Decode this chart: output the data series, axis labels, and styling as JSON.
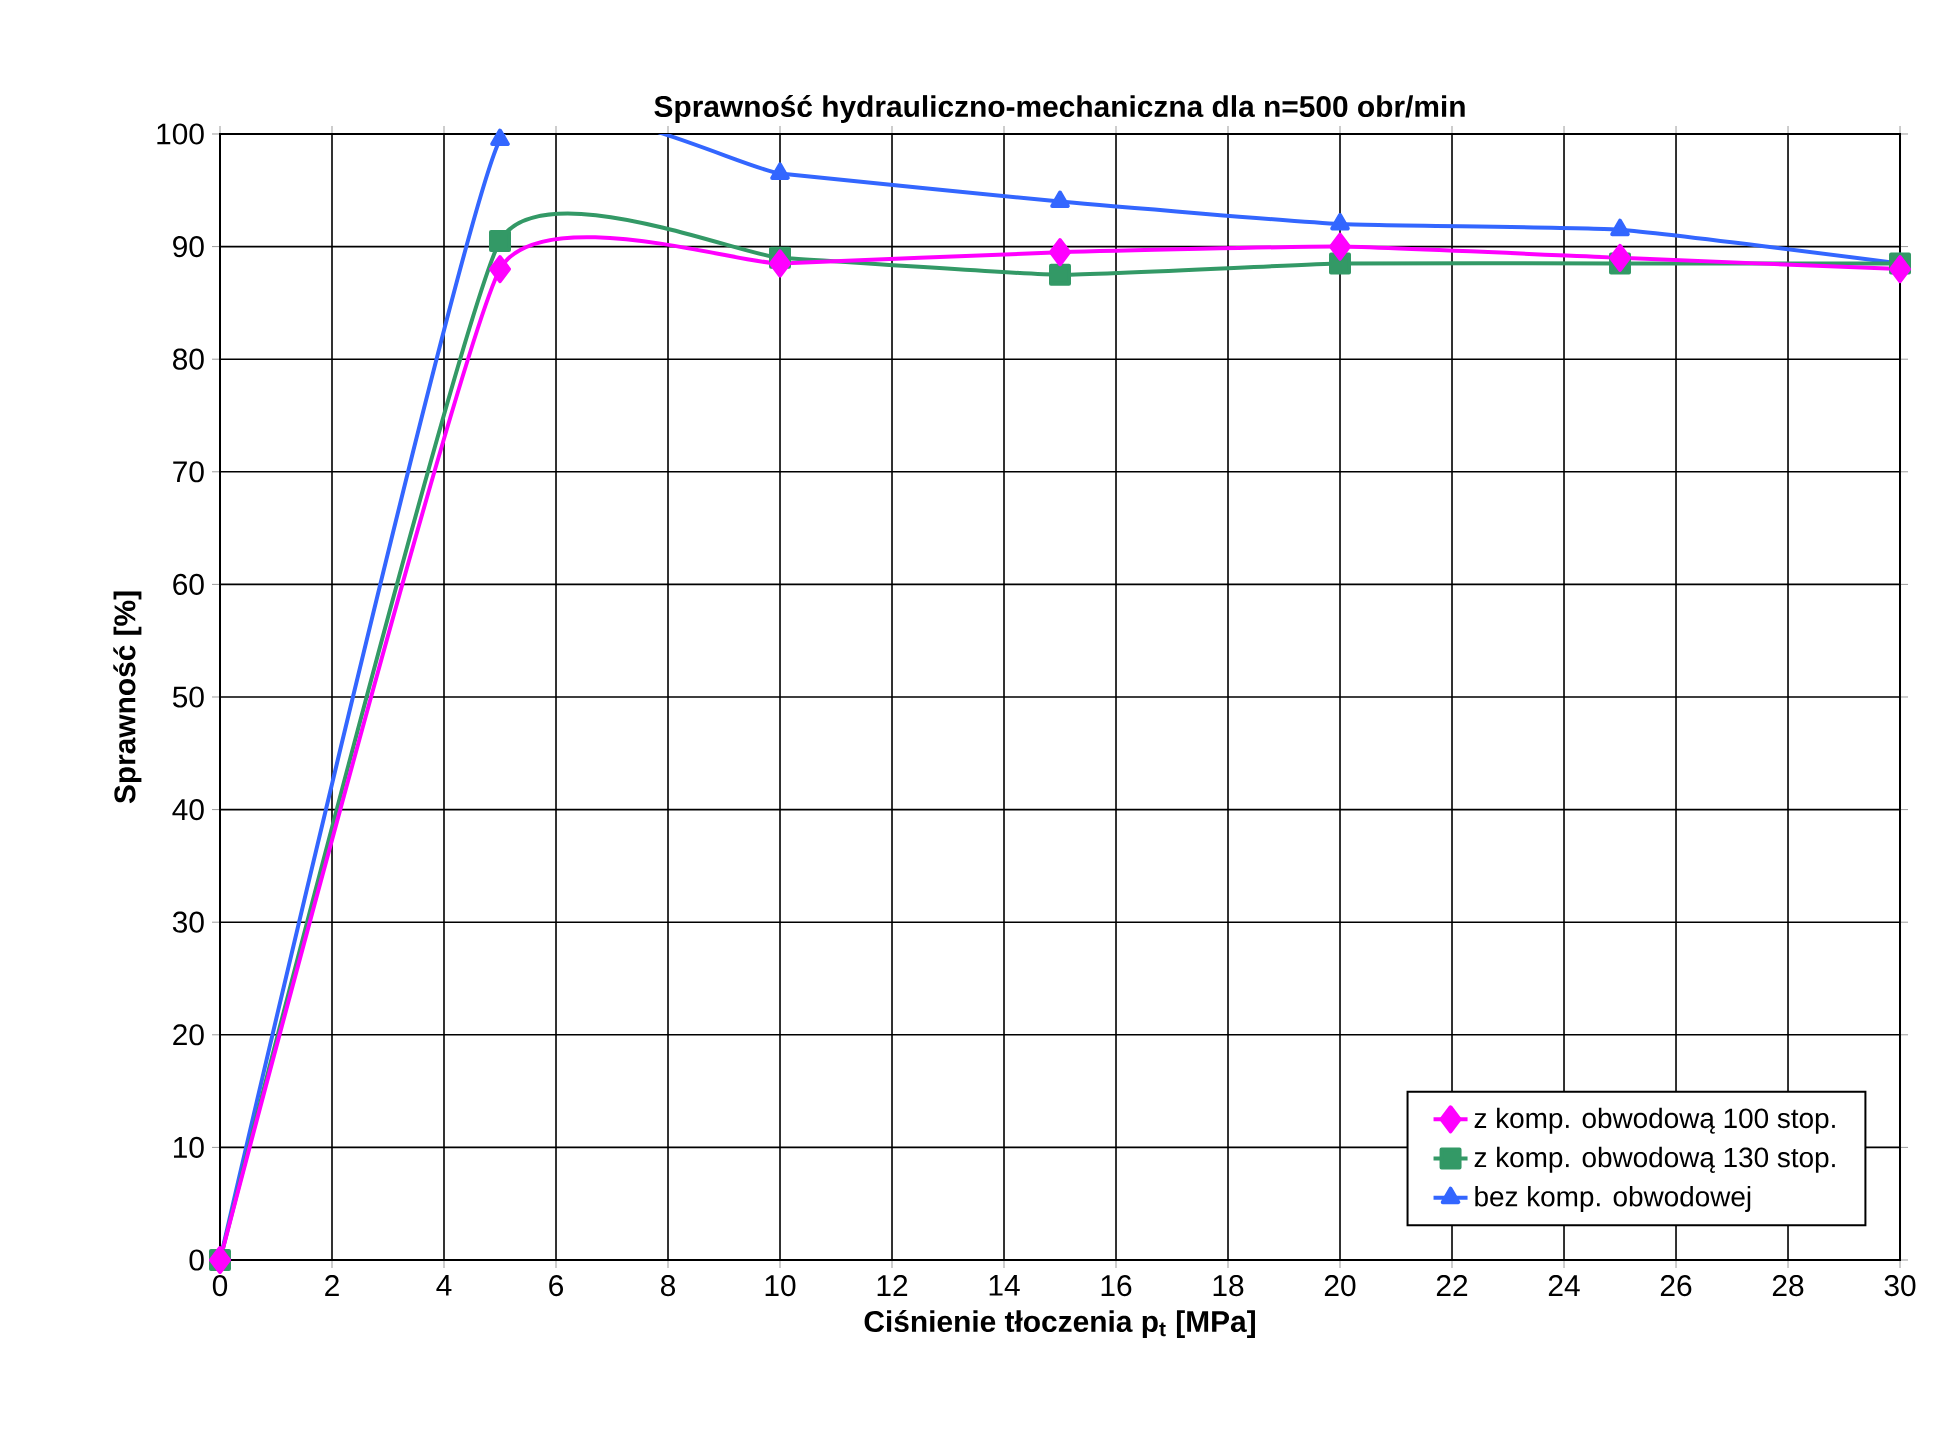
{
  "chart_data": {
    "type": "line",
    "title": "Sprawność hydrauliczno-mechaniczna dla n=500 obr/min",
    "xlabel": "Ciśnienie tłoczenia p$_{t}$ [MPa]",
    "ylabel": "Sprawność [%]",
    "x": [
      0,
      5,
      10,
      15,
      20,
      25,
      30
    ],
    "series": [
      {
        "name": "z komp. obwodową 100 stop.",
        "color": "#ff00ff",
        "marker": "diamond",
        "values": [
          0,
          88,
          88.5,
          89.5,
          90,
          89,
          88
        ]
      },
      {
        "name": "z komp. obwodową 130 stop.",
        "color": "#339966",
        "marker": "square",
        "values": [
          0,
          90.5,
          89,
          87.5,
          88.5,
          88.5,
          88.5
        ]
      },
      {
        "name": "bez komp. obwodowej",
        "color": "#3366ff",
        "marker": "triangle",
        "values": [
          0,
          99.5,
          96.5,
          94,
          92,
          91.5,
          88.5
        ]
      }
    ],
    "xlim": [
      0,
      30
    ],
    "xticks": [
      0,
      2,
      4,
      6,
      8,
      10,
      12,
      14,
      16,
      18,
      20,
      22,
      24,
      26,
      28,
      30
    ],
    "ylim": [
      0,
      100
    ],
    "yticks": [
      0,
      10,
      20,
      30,
      40,
      50,
      60,
      70,
      80,
      90,
      100
    ],
    "grid": true,
    "legend": "bottom right",
    "line_style": "solid"
  }
}
